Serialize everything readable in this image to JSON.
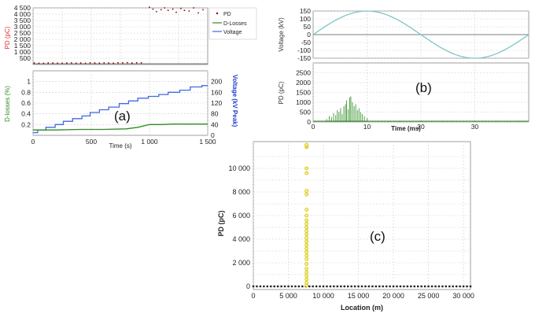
{
  "panel_labels": {
    "a": "(a)",
    "b": "(b)",
    "c": "(c)"
  },
  "legend": [
    "PD",
    "D-Losses",
    "Voltage"
  ],
  "colors": {
    "pd_a": "#8b0000",
    "dlosses": "#2e8b22",
    "voltage": "#4169e1",
    "sine": "#7fc4c4",
    "pd_b": "#2e8b22",
    "pd_c_marker": "#d4c20a",
    "pd_c_fill": "#f3ef8a",
    "label_red": "#e03030",
    "label_green": "#2e8b22",
    "label_blue": "#1f3fd0"
  },
  "chart_data": [
    {
      "id": "a_top",
      "type": "scatter",
      "ylabel": "PD (pC)",
      "xlim": [
        0,
        1500
      ],
      "ylim": [
        0,
        4500
      ],
      "yticks": [
        "500",
        "1 000",
        "1 500",
        "2 000",
        "2 500",
        "3 000",
        "3 500",
        "4 000",
        "4 500"
      ],
      "ytick_values": [
        500,
        1000,
        1500,
        2000,
        2500,
        3000,
        3500,
        4000,
        4500
      ],
      "series": [
        {
          "name": "PD",
          "x": [
            10,
            50,
            90,
            130,
            170,
            210,
            250,
            290,
            330,
            370,
            410,
            450,
            490,
            530,
            570,
            610,
            650,
            690,
            730,
            770,
            810,
            850,
            890,
            930,
            1000,
            1030,
            1060,
            1100,
            1130,
            1160,
            1200,
            1230,
            1270,
            1300,
            1340,
            1380,
            1420,
            1460
          ],
          "y": [
            120,
            110,
            100,
            130,
            120,
            110,
            100,
            120,
            130,
            110,
            120,
            100,
            130,
            120,
            110,
            130,
            120,
            110,
            140,
            130,
            150,
            120,
            140,
            130,
            4550,
            4400,
            4200,
            4350,
            4500,
            4300,
            4400,
            4150,
            4450,
            4300,
            4250,
            4500,
            4100,
            4350
          ]
        }
      ]
    },
    {
      "id": "a_bottom",
      "type": "line",
      "xlabel": "Time (s)",
      "ylabel_left": "D-losses (%)",
      "ylabel_right": "Voltage (kV Peak)",
      "xlim": [
        0,
        1500
      ],
      "xticks": [
        "0",
        "500",
        "1 000",
        "1 500"
      ],
      "xtick_values": [
        0,
        500,
        1000,
        1500
      ],
      "ylim_left": [
        0,
        1.2
      ],
      "yticks_left": [
        "0.2",
        "0.4",
        "0.6",
        "0.8",
        "1"
      ],
      "ytick_values_left": [
        0.2,
        0.4,
        0.6,
        0.8,
        1
      ],
      "ylim_right": [
        0,
        240
      ],
      "yticks_right": [
        "0",
        "40",
        "80",
        "120",
        "160",
        "200"
      ],
      "ytick_values_right": [
        0,
        40,
        80,
        120,
        160,
        200
      ],
      "series": [
        {
          "name": "Voltage",
          "axis": "right",
          "x": [
            0,
            40,
            40,
            110,
            110,
            190,
            190,
            260,
            260,
            340,
            340,
            420,
            420,
            490,
            490,
            570,
            570,
            650,
            650,
            740,
            740,
            820,
            820,
            900,
            900,
            990,
            990,
            1080,
            1080,
            1160,
            1160,
            1260,
            1260,
            1350,
            1350,
            1450,
            1450,
            1500
          ],
          "y": [
            10,
            10,
            20,
            20,
            30,
            30,
            40,
            40,
            52,
            52,
            62,
            62,
            72,
            72,
            85,
            85,
            95,
            95,
            105,
            105,
            118,
            118,
            128,
            128,
            138,
            138,
            145,
            145,
            152,
            152,
            160,
            160,
            168,
            168,
            180,
            180,
            185,
            185
          ]
        },
        {
          "name": "D-Losses",
          "axis": "left",
          "x": [
            0,
            200,
            400,
            600,
            800,
            900,
            1000,
            1100,
            1200,
            1300,
            1400,
            1500
          ],
          "y": [
            0.1,
            0.1,
            0.11,
            0.11,
            0.12,
            0.15,
            0.2,
            0.2,
            0.21,
            0.21,
            0.21,
            0.21
          ]
        }
      ]
    },
    {
      "id": "b_top",
      "type": "line",
      "ylabel": "Voltage (kV)",
      "xlim": [
        0,
        40
      ],
      "ylim": [
        -150,
        150
      ],
      "yticks": [
        "150",
        "100",
        "50",
        "0",
        "-50",
        "-100",
        "-150"
      ],
      "ytick_values": [
        150,
        100,
        50,
        0,
        -50,
        -100,
        -150
      ],
      "series": [
        {
          "name": "Voltage",
          "function": "sine",
          "amplitude": 150,
          "period_ms": 40
        }
      ]
    },
    {
      "id": "b_bottom",
      "type": "bar",
      "xlabel": "Time (ms)",
      "ylabel": "PD (pC)",
      "xlim": [
        0,
        40
      ],
      "xticks": [
        "0",
        "10",
        "20",
        "30"
      ],
      "xtick_values": [
        0,
        10,
        20,
        30
      ],
      "ylim": [
        0,
        3000
      ],
      "yticks": [
        "0",
        "500",
        "1000",
        "1500",
        "2000",
        "2500"
      ],
      "ytick_values": [
        0,
        500,
        1000,
        1500,
        2000,
        2500
      ],
      "series": [
        {
          "name": "PD",
          "x": [
            2.5,
            3.0,
            3.4,
            3.8,
            4.2,
            4.5,
            4.8,
            5.1,
            5.4,
            5.7,
            6.0,
            6.2,
            6.5,
            6.8,
            7.0,
            7.3,
            7.6,
            7.9,
            8.2,
            8.5,
            8.8,
            9.1,
            9.5,
            10.0,
            12,
            14,
            16,
            18,
            20,
            22,
            24,
            26,
            28,
            30,
            32,
            34,
            36,
            38
          ],
          "y": [
            150,
            300,
            250,
            450,
            350,
            600,
            500,
            700,
            400,
            800,
            900,
            1100,
            650,
            1250,
            1300,
            1000,
            800,
            900,
            600,
            700,
            500,
            400,
            300,
            200,
            30,
            25,
            35,
            20,
            40,
            50,
            60,
            45,
            55,
            40,
            35,
            30,
            40,
            25
          ]
        }
      ]
    },
    {
      "id": "c",
      "type": "scatter",
      "xlabel": "Location (m)",
      "ylabel": "PD (pC)",
      "xlim": [
        0,
        31000
      ],
      "xticks": [
        "0",
        "5 000",
        "10 000",
        "15 000",
        "20 000",
        "25 000",
        "30 000"
      ],
      "xtick_values": [
        0,
        5000,
        10000,
        15000,
        20000,
        25000,
        30000
      ],
      "ylim": [
        0,
        12000
      ],
      "yticks": [
        "0",
        "2 000",
        "4 000",
        "6 000",
        "8 000",
        "10 000"
      ],
      "ytick_values": [
        0,
        2000,
        4000,
        6000,
        8000,
        10000
      ],
      "series": [
        {
          "name": "PD",
          "x": [
            7600,
            7600,
            7600,
            7600,
            7600,
            7600,
            7600,
            7600,
            7600,
            7600,
            7600,
            7600,
            7600,
            7600,
            7600,
            7600,
            7600,
            7600,
            7600,
            7600,
            7600,
            7600,
            7600,
            7600,
            7600,
            7600,
            7600,
            7600
          ],
          "y": [
            100,
            300,
            600,
            900,
            1200,
            1500,
            1900,
            2300,
            2600,
            2900,
            3200,
            3500,
            3800,
            4100,
            4400,
            4700,
            5000,
            5300,
            5600,
            6000,
            6500,
            7800,
            8100,
            9600,
            10000,
            11800,
            11900,
            12000
          ]
        }
      ]
    }
  ]
}
